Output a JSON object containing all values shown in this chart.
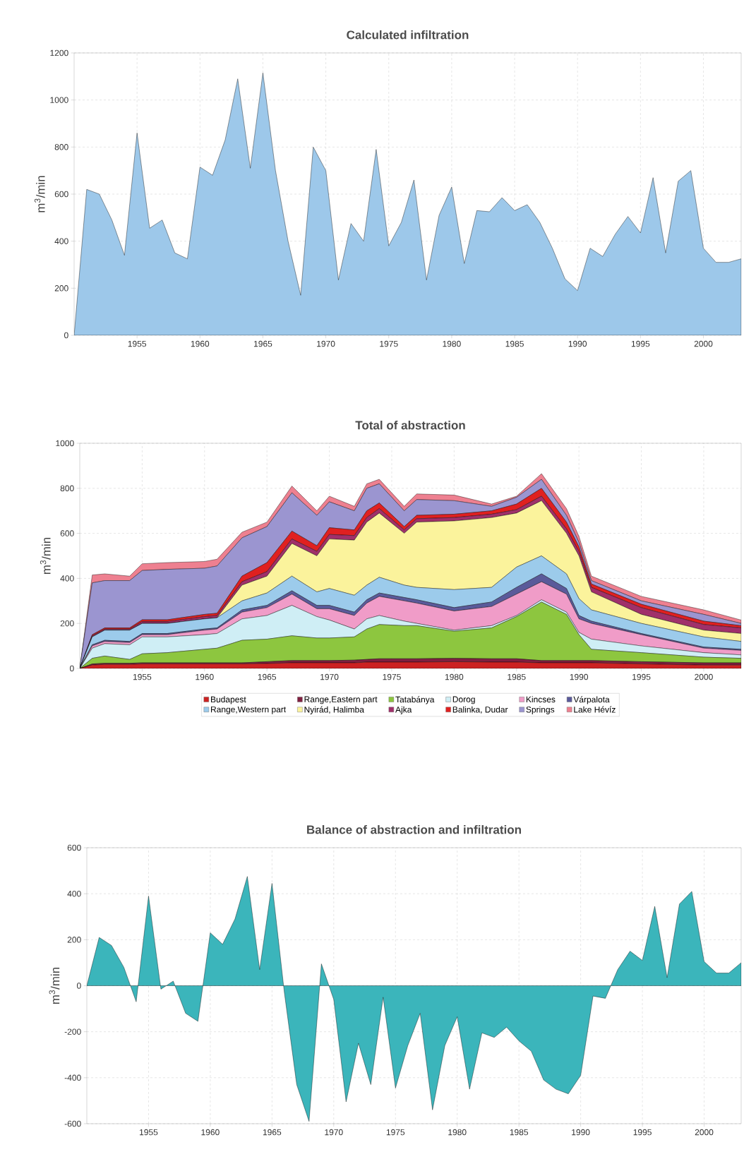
{
  "chart_data": [
    {
      "type": "area",
      "title": "Calculated infiltration",
      "ylabel": "m$^{3}$/min",
      "color": "#9dc8ea",
      "grid": true,
      "x": [
        1950,
        1951,
        1952,
        1953,
        1954,
        1955,
        1956,
        1957,
        1958,
        1959,
        1960,
        1961,
        1962,
        1963,
        1964,
        1965,
        1966,
        1967,
        1968,
        1969,
        1970,
        1971,
        1972,
        1973,
        1974,
        1975,
        1976,
        1977,
        1978,
        1979,
        1980,
        1981,
        1982,
        1983,
        1984,
        1985,
        1986,
        1987,
        1988,
        1989,
        1990,
        1991,
        1992,
        1993,
        1994,
        1995,
        1996,
        1997,
        1998,
        1999,
        2000,
        2001,
        2002,
        2003
      ],
      "values": [
        0,
        620,
        600,
        490,
        340,
        860,
        455,
        490,
        350,
        325,
        715,
        680,
        830,
        1090,
        710,
        1115,
        700,
        400,
        170,
        800,
        700,
        235,
        475,
        400,
        790,
        380,
        480,
        660,
        235,
        510,
        630,
        305,
        530,
        525,
        585,
        530,
        555,
        480,
        370,
        240,
        190,
        370,
        335,
        430,
        505,
        435,
        670,
        350,
        655,
        700,
        370,
        310,
        310,
        325
      ],
      "xlim": [
        1950,
        2003
      ],
      "ylim": [
        0,
        1200
      ],
      "xticks": [
        1955,
        1960,
        1965,
        1970,
        1975,
        1980,
        1985,
        1990,
        1995,
        2000
      ],
      "yticks": [
        0,
        200,
        400,
        600,
        800,
        1000,
        1200
      ]
    },
    {
      "type": "area",
      "title": "Total of abstraction",
      "ylabel": "m$^{3}$/min",
      "stacked": true,
      "grid": true,
      "legend": "bottom",
      "x": [
        1950,
        1951,
        1952,
        1954,
        1955,
        1957,
        1960,
        1961,
        1963,
        1965,
        1967,
        1969,
        1970,
        1972,
        1973,
        1974,
        1976,
        1977,
        1980,
        1983,
        1985,
        1987,
        1989,
        1990,
        1991,
        1995,
        2000,
        2003
      ],
      "series": [
        {
          "name": "Budapest",
          "color": "#cc2222",
          "values": [
            0,
            15,
            18,
            18,
            20,
            20,
            20,
            20,
            20,
            22,
            25,
            25,
            25,
            25,
            28,
            28,
            28,
            28,
            30,
            28,
            28,
            25,
            25,
            25,
            25,
            20,
            15,
            15
          ]
        },
        {
          "name": "Range,Eastern part",
          "color": "#802040",
          "values": [
            0,
            5,
            5,
            5,
            5,
            5,
            5,
            5,
            5,
            8,
            10,
            10,
            10,
            12,
            12,
            15,
            15,
            15,
            15,
            15,
            15,
            10,
            10,
            10,
            10,
            10,
            10,
            10
          ]
        },
        {
          "name": "Tatabánya",
          "color": "#8dc63f",
          "values": [
            0,
            25,
            32,
            17,
            40,
            45,
            60,
            65,
            100,
            100,
            110,
            100,
            100,
            103,
            135,
            152,
            147,
            147,
            120,
            137,
            187,
            260,
            205,
            115,
            50,
            40,
            25,
            20
          ]
        },
        {
          "name": "Dorog",
          "color": "#cfeef5",
          "values": [
            0,
            45,
            55,
            65,
            75,
            70,
            65,
            65,
            95,
            105,
            135,
            95,
            80,
            35,
            45,
            40,
            20,
            10,
            5,
            10,
            5,
            10,
            10,
            10,
            45,
            30,
            20,
            15
          ]
        },
        {
          "name": "Kincses",
          "color": "#f09cc8",
          "values": [
            0,
            10,
            10,
            10,
            10,
            10,
            20,
            20,
            30,
            35,
            50,
            35,
            50,
            60,
            70,
            85,
            90,
            90,
            85,
            85,
            95,
            80,
            80,
            60,
            70,
            50,
            20,
            20
          ]
        },
        {
          "name": "Várpalota",
          "color": "#5a5a9a",
          "values": [
            0,
            5,
            5,
            5,
            5,
            5,
            5,
            5,
            10,
            10,
            15,
            15,
            15,
            15,
            15,
            15,
            15,
            15,
            15,
            20,
            30,
            35,
            25,
            15,
            10,
            5,
            5,
            5
          ]
        },
        {
          "name": "Range,Western part",
          "color": "#9ccbeb",
          "values": [
            0,
            35,
            45,
            50,
            45,
            45,
            45,
            45,
            40,
            55,
            65,
            60,
            75,
            75,
            65,
            70,
            55,
            55,
            80,
            65,
            90,
            80,
            65,
            75,
            50,
            45,
            45,
            35
          ]
        },
        {
          "name": "Nyirád, Halimba",
          "color": "#fbf39c",
          "values": [
            0,
            0,
            0,
            0,
            0,
            0,
            0,
            0,
            70,
            75,
            145,
            160,
            220,
            245,
            280,
            285,
            230,
            290,
            305,
            310,
            240,
            245,
            180,
            190,
            80,
            40,
            30,
            35
          ]
        },
        {
          "name": "Ajka",
          "color": "#a0306a",
          "values": [
            0,
            5,
            5,
            5,
            8,
            8,
            10,
            10,
            15,
            20,
            20,
            20,
            20,
            20,
            20,
            20,
            15,
            15,
            15,
            15,
            15,
            20,
            20,
            20,
            20,
            30,
            25,
            25
          ]
        },
        {
          "name": "Balinka, Dudar",
          "color": "#e02020",
          "values": [
            0,
            5,
            5,
            5,
            8,
            8,
            10,
            10,
            25,
            40,
            35,
            25,
            30,
            25,
            30,
            25,
            15,
            15,
            15,
            15,
            25,
            35,
            30,
            20,
            15,
            15,
            15,
            10
          ]
        },
        {
          "name": "Springs",
          "color": "#9b95d0",
          "values": [
            0,
            230,
            210,
            210,
            219,
            224,
            205,
            210,
            170,
            160,
            170,
            135,
            115,
            85,
            100,
            85,
            70,
            70,
            60,
            20,
            30,
            40,
            30,
            20,
            15,
            15,
            30,
            10
          ]
        },
        {
          "name": "Lake Hévíz",
          "color": "#ee8090",
          "values": [
            0,
            35,
            30,
            20,
            30,
            30,
            30,
            30,
            25,
            20,
            30,
            20,
            25,
            20,
            20,
            20,
            20,
            25,
            25,
            10,
            5,
            25,
            30,
            27,
            20,
            20,
            20,
            15
          ]
        }
      ],
      "xlim": [
        1950,
        2003
      ],
      "ylim": [
        0,
        1000
      ],
      "xticks": [
        1955,
        1960,
        1965,
        1970,
        1975,
        1980,
        1985,
        1990,
        1995,
        2000
      ],
      "yticks": [
        0,
        200,
        400,
        600,
        800,
        1000
      ]
    },
    {
      "type": "area",
      "title": "Balance of abstraction and infiltration",
      "ylabel": "m$^{3}$/min",
      "color": "#3bb5bb",
      "grid": true,
      "x": [
        1950,
        1951,
        1952,
        1953,
        1954,
        1955,
        1956,
        1957,
        1958,
        1959,
        1960,
        1961,
        1962,
        1963,
        1964,
        1965,
        1966,
        1967,
        1968,
        1969,
        1970,
        1971,
        1972,
        1973,
        1974,
        1975,
        1976,
        1977,
        1978,
        1979,
        1980,
        1981,
        1982,
        1983,
        1984,
        1985,
        1986,
        1987,
        1988,
        1989,
        1990,
        1991,
        1992,
        1993,
        1994,
        1995,
        1996,
        1997,
        1998,
        1999,
        2000,
        2001,
        2002,
        2003
      ],
      "values": [
        0,
        210,
        175,
        80,
        -70,
        390,
        -15,
        20,
        -120,
        -155,
        230,
        180,
        290,
        475,
        70,
        445,
        -30,
        -430,
        -590,
        95,
        -60,
        -505,
        -250,
        -430,
        -50,
        -445,
        -260,
        -120,
        -540,
        -260,
        -135,
        -450,
        -205,
        -225,
        -180,
        -240,
        -285,
        -410,
        -450,
        -470,
        -390,
        -45,
        -55,
        70,
        150,
        110,
        345,
        35,
        355,
        410,
        105,
        55,
        55,
        100
      ],
      "xlim": [
        1950,
        2003
      ],
      "ylim": [
        -600,
        600
      ],
      "xticks": [
        1955,
        1960,
        1965,
        1970,
        1975,
        1980,
        1985,
        1990,
        1995,
        2000
      ],
      "yticks": [
        -600,
        -400,
        -200,
        0,
        200,
        400,
        600
      ]
    }
  ]
}
